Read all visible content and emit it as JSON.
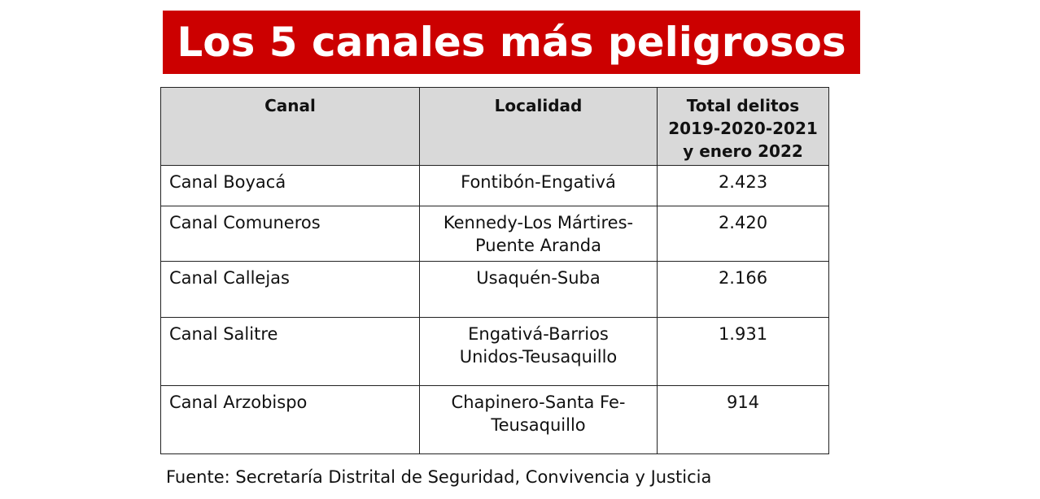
{
  "title": "Los 5 canales más peligrosos",
  "table": {
    "headers": {
      "canal": "Canal",
      "localidad": "Localidad",
      "total_line1": "Total delitos",
      "total_line2": "2019-2020-2021",
      "total_line3": "y enero 2022"
    },
    "rows": [
      {
        "canal": "Canal Boyacá",
        "localidad_line1": "Fontibón-Engativá",
        "localidad_line2": "",
        "total": "2.423"
      },
      {
        "canal": "Canal Comuneros",
        "localidad_line1": "Kennedy-Los Mártires-",
        "localidad_line2": "Puente Aranda",
        "total": "2.420"
      },
      {
        "canal": "Canal Callejas",
        "localidad_line1": "Usaquén-Suba",
        "localidad_line2": "",
        "total": "2.166"
      },
      {
        "canal": "Canal Salitre",
        "localidad_line1": "Engativá-Barrios",
        "localidad_line2": "Unidos-Teusaquillo",
        "total": "1.931"
      },
      {
        "canal": "Canal Arzobispo",
        "localidad_line1": "Chapinero-Santa Fe-",
        "localidad_line2": "Teusaquillo",
        "total": "914"
      }
    ]
  },
  "source": "Fuente: Secretaría Distrital de Seguridad, Convivencia y Justicia",
  "colors": {
    "banner": "#cc0000",
    "header_bg": "#d9d9d9"
  }
}
